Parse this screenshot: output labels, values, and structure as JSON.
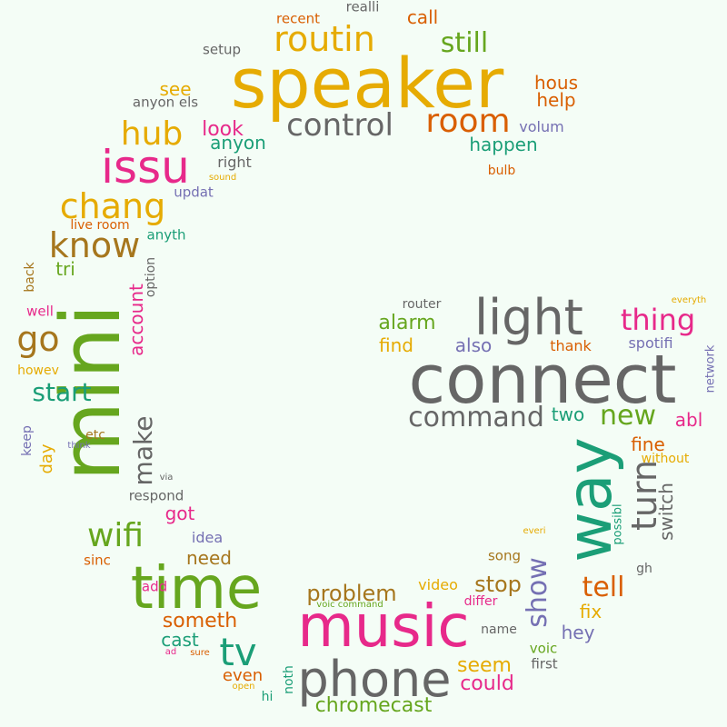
{
  "palette": {
    "background": "#f4fdf6",
    "yellow": "#e6ab02",
    "magenta": "#e7298a",
    "green": "#66a61e",
    "grey": "#666666",
    "teal": "#1b9e77",
    "orange": "#d95f02",
    "purple": "#7570b3",
    "brown": "#a6761d"
  },
  "words": [
    {
      "text": "speaker",
      "color": "yellow",
      "size": 76
    },
    {
      "text": "connect",
      "color": "grey",
      "size": 74
    },
    {
      "text": "mini",
      "color": "green",
      "size": 90,
      "vertical": true
    },
    {
      "text": "music",
      "color": "magenta",
      "size": 64
    },
    {
      "text": "way",
      "color": "teal",
      "size": 68,
      "vertical": true
    },
    {
      "text": "time",
      "color": "green",
      "size": 64
    },
    {
      "text": "light",
      "color": "grey",
      "size": 54
    },
    {
      "text": "phone",
      "color": "grey",
      "size": 54
    },
    {
      "text": "issu",
      "color": "magenta",
      "size": 50
    },
    {
      "text": "routin",
      "color": "yellow",
      "size": 38
    },
    {
      "text": "chang",
      "color": "yellow",
      "size": 38
    },
    {
      "text": "know",
      "color": "brown",
      "size": 38
    },
    {
      "text": "control",
      "color": "grey",
      "size": 34
    },
    {
      "text": "room",
      "color": "orange",
      "size": 36
    },
    {
      "text": "hub",
      "color": "yellow",
      "size": 36
    },
    {
      "text": "go",
      "color": "brown",
      "size": 38
    },
    {
      "text": "command",
      "color": "grey",
      "size": 30
    },
    {
      "text": "turn",
      "color": "grey",
      "size": 38,
      "vertical": true
    },
    {
      "text": "thing",
      "color": "magenta",
      "size": 32
    },
    {
      "text": "wifi",
      "color": "green",
      "size": 36
    },
    {
      "text": "tv",
      "color": "teal",
      "size": 42
    },
    {
      "text": "still",
      "color": "green",
      "size": 30
    },
    {
      "text": "start",
      "color": "teal",
      "size": 28
    },
    {
      "text": "show",
      "color": "purple",
      "size": 30,
      "vertical": true
    },
    {
      "text": "make",
      "color": "grey",
      "size": 28,
      "vertical": true
    },
    {
      "text": "new",
      "color": "green",
      "size": 30
    },
    {
      "text": "tell",
      "color": "orange",
      "size": 30
    },
    {
      "text": "problem",
      "color": "brown",
      "size": 24
    },
    {
      "text": "stop",
      "color": "brown",
      "size": 24
    },
    {
      "text": "chromecast",
      "color": "green",
      "size": 22
    },
    {
      "text": "someth",
      "color": "orange",
      "size": 22
    },
    {
      "text": "could",
      "color": "magenta",
      "size": 22
    },
    {
      "text": "seem",
      "color": "yellow",
      "size": 22
    },
    {
      "text": "alarm",
      "color": "green",
      "size": 22
    },
    {
      "text": "look",
      "color": "magenta",
      "size": 22
    },
    {
      "text": "happen",
      "color": "teal",
      "size": 20
    },
    {
      "text": "hous",
      "color": "orange",
      "size": 20
    },
    {
      "text": "help",
      "color": "orange",
      "size": 20
    },
    {
      "text": "anyon",
      "color": "teal",
      "size": 20
    },
    {
      "text": "see",
      "color": "yellow",
      "size": 20
    },
    {
      "text": "call",
      "color": "orange",
      "size": 20
    },
    {
      "text": "account",
      "color": "magenta",
      "size": 20,
      "vertical": true
    },
    {
      "text": "abl",
      "color": "magenta",
      "size": 20
    },
    {
      "text": "fine",
      "color": "orange",
      "size": 20
    },
    {
      "text": "switch",
      "color": "grey",
      "size": 20,
      "vertical": true
    },
    {
      "text": "find",
      "color": "yellow",
      "size": 20
    },
    {
      "text": "also",
      "color": "purple",
      "size": 20
    },
    {
      "text": "two",
      "color": "teal",
      "size": 20
    },
    {
      "text": "got",
      "color": "magenta",
      "size": 20
    },
    {
      "text": "need",
      "color": "brown",
      "size": 20
    },
    {
      "text": "cast",
      "color": "teal",
      "size": 20
    },
    {
      "text": "fix",
      "color": "yellow",
      "size": 20
    },
    {
      "text": "hey",
      "color": "purple",
      "size": 20
    },
    {
      "text": "tri",
      "color": "green",
      "size": 20
    },
    {
      "text": "day",
      "color": "yellow",
      "size": 18,
      "vertical": true
    },
    {
      "text": "even",
      "color": "orange",
      "size": 18
    },
    {
      "text": "idea",
      "color": "purple",
      "size": 16
    },
    {
      "text": "video",
      "color": "yellow",
      "size": 16
    },
    {
      "text": "spotifi",
      "color": "purple",
      "size": 16
    },
    {
      "text": "thank",
      "color": "orange",
      "size": 16
    },
    {
      "text": "volum",
      "color": "purple",
      "size": 16
    },
    {
      "text": "right",
      "color": "grey",
      "size": 16
    },
    {
      "text": "updat",
      "color": "purple",
      "size": 15
    },
    {
      "text": "respond",
      "color": "grey",
      "size": 15
    },
    {
      "text": "sinc",
      "color": "orange",
      "size": 15
    },
    {
      "text": "add",
      "color": "magenta",
      "size": 15
    },
    {
      "text": "anyth",
      "color": "teal",
      "size": 15
    },
    {
      "text": "well",
      "color": "magenta",
      "size": 15
    },
    {
      "text": "howev",
      "color": "yellow",
      "size": 14
    },
    {
      "text": "etc",
      "color": "brown",
      "size": 14
    },
    {
      "text": "bulb",
      "color": "orange",
      "size": 14
    },
    {
      "text": "song",
      "color": "brown",
      "size": 15
    },
    {
      "text": "differ",
      "color": "magenta",
      "size": 14
    },
    {
      "text": "name",
      "color": "grey",
      "size": 14
    },
    {
      "text": "voic",
      "color": "green",
      "size": 15
    },
    {
      "text": "first",
      "color": "grey",
      "size": 15
    },
    {
      "text": "recent",
      "color": "orange",
      "size": 15
    },
    {
      "text": "realli",
      "color": "grey",
      "size": 15
    },
    {
      "text": "setup",
      "color": "grey",
      "size": 15
    },
    {
      "text": "anyon els",
      "color": "grey",
      "size": 15
    },
    {
      "text": "live room",
      "color": "orange",
      "size": 14
    },
    {
      "text": "router",
      "color": "grey",
      "size": 14
    },
    {
      "text": "without",
      "color": "yellow",
      "size": 14
    },
    {
      "text": "hi",
      "color": "teal",
      "size": 14
    },
    {
      "text": "option",
      "color": "grey",
      "size": 14,
      "vertical": true
    },
    {
      "text": "back",
      "color": "brown",
      "size": 14,
      "vertical": true
    },
    {
      "text": "keep",
      "color": "purple",
      "size": 14,
      "vertical": true
    },
    {
      "text": "noth",
      "color": "teal",
      "size": 14,
      "vertical": true
    },
    {
      "text": "possibl",
      "color": "teal",
      "size": 13,
      "vertical": true
    },
    {
      "text": "network",
      "color": "purple",
      "size": 13,
      "vertical": true
    },
    {
      "text": "gh",
      "color": "grey",
      "size": 14
    },
    {
      "text": "sound",
      "color": "yellow",
      "size": 10
    },
    {
      "text": "everyth",
      "color": "yellow",
      "size": 10
    },
    {
      "text": "think",
      "color": "purple",
      "size": 10
    },
    {
      "text": "via",
      "color": "grey",
      "size": 10
    },
    {
      "text": "everi",
      "color": "yellow",
      "size": 10
    },
    {
      "text": "voic command",
      "color": "green",
      "size": 10
    },
    {
      "text": "ad",
      "color": "magenta",
      "size": 10
    },
    {
      "text": "sure",
      "color": "orange",
      "size": 10
    },
    {
      "text": "open",
      "color": "yellow",
      "size": 10
    }
  ]
}
